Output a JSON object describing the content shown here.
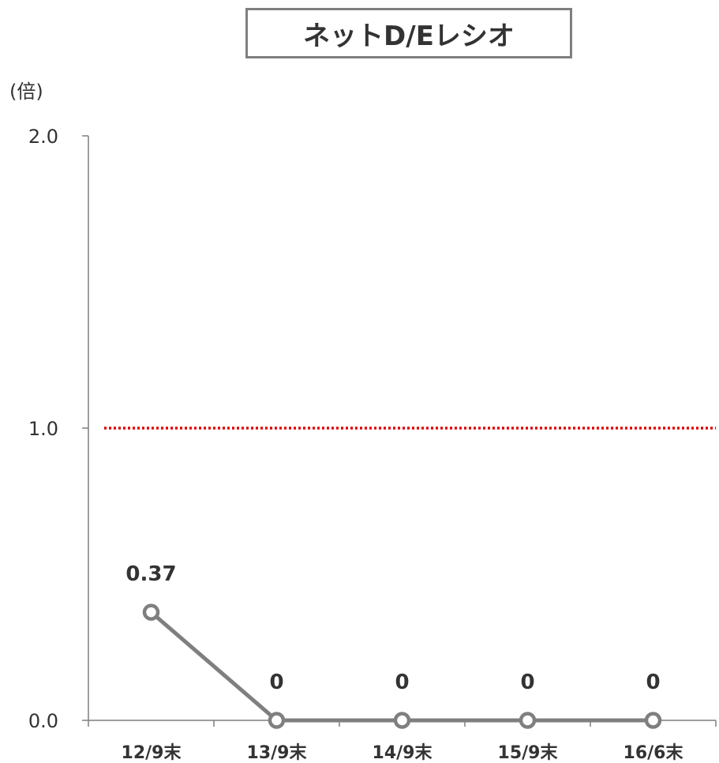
{
  "chart_data": {
    "type": "line",
    "title": "ネットD/Eレシオ",
    "unit_label": "(倍)",
    "categories": [
      "12/9末",
      "13/9末",
      "14/9末",
      "15/9末",
      "16/6末"
    ],
    "series": [
      {
        "values": [
          0.37,
          0,
          0,
          0,
          0
        ]
      }
    ],
    "data_labels": [
      "0.37",
      "0",
      "0",
      "0",
      "0"
    ],
    "ylim": [
      0,
      2.0
    ],
    "yticks": [
      "0.0",
      "1.0",
      "2.0"
    ],
    "reference_line": {
      "value": 1.0,
      "style": "dotted",
      "color": "#e00000"
    },
    "grid": false,
    "legend": "none",
    "colors": {
      "line": "#7f7f7f",
      "marker_fill": "#ffffff",
      "axis": "#7f7f7f",
      "text": "#333333"
    }
  }
}
